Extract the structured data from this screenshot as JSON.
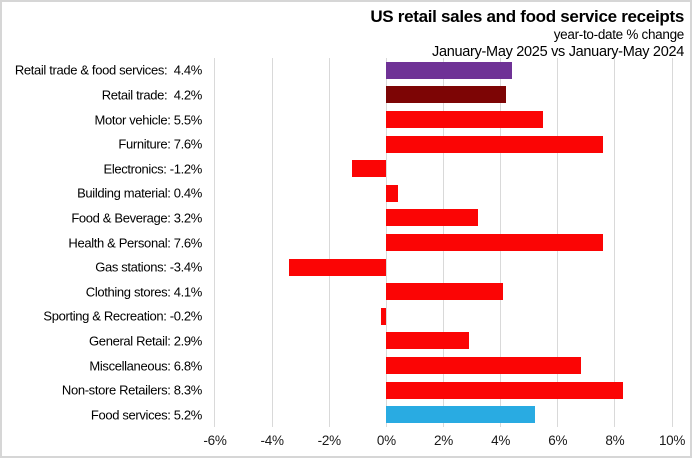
{
  "chart_data": {
    "type": "bar",
    "orientation": "horizontal",
    "title": "US retail sales and food service receipts",
    "subtitle": "year-to-date % change",
    "period": "January-May 2025 vs January-May 2024",
    "categories": [
      "Retail trade & food services",
      "Retail trade",
      "Motor vehicle",
      "Furniture",
      "Electronics",
      "Building material",
      "Food & Beverage",
      "Health & Personal",
      "Gas stations",
      "Clothing stores",
      "Sporting & Recreation",
      "General Retail",
      "Miscellaneous",
      "Non-store Retailers",
      "Food services"
    ],
    "values": [
      4.4,
      4.2,
      5.5,
      7.6,
      -1.2,
      0.4,
      3.2,
      7.6,
      -3.4,
      4.1,
      -0.2,
      2.9,
      6.8,
      8.3,
      5.2
    ],
    "labels": [
      "Retail trade & food services:  4.4%",
      "Retail trade:  4.2%",
      "Motor vehicle: 5.5%",
      "Furniture: 7.6%",
      "Electronics: -1.2%",
      "Building material: 0.4%",
      "Food & Beverage: 3.2%",
      "Health & Personal: 7.6%",
      "Gas stations: -3.4%",
      "Clothing stores: 4.1%",
      "Sporting & Recreation: -0.2%",
      "General Retail: 2.9%",
      "Miscellaneous: 6.8%",
      "Non-store Retailers: 8.3%",
      "Food services: 5.2%"
    ],
    "bar_colors": [
      "#6F3296",
      "#7D0505",
      "#FB0505",
      "#FB0505",
      "#FB0505",
      "#FB0505",
      "#FB0505",
      "#FB0505",
      "#FB0505",
      "#FB0505",
      "#FB0505",
      "#FB0505",
      "#FB0505",
      "#FB0505",
      "#29ABE2"
    ],
    "x_ticks": [
      {
        "value": -6,
        "label": "-6%"
      },
      {
        "value": -4,
        "label": "-4%"
      },
      {
        "value": -2,
        "label": "-2%"
      },
      {
        "value": 0,
        "label": "0%"
      },
      {
        "value": 2,
        "label": "2%"
      },
      {
        "value": 4,
        "label": "4%"
      },
      {
        "value": 6,
        "label": "6%"
      },
      {
        "value": 8,
        "label": "8%"
      },
      {
        "value": 10,
        "label": "10%"
      }
    ],
    "xlim": [
      -6.28,
      10.28
    ],
    "grid_color": "#d9d9d9",
    "legend": "none",
    "grid": "vertical"
  }
}
